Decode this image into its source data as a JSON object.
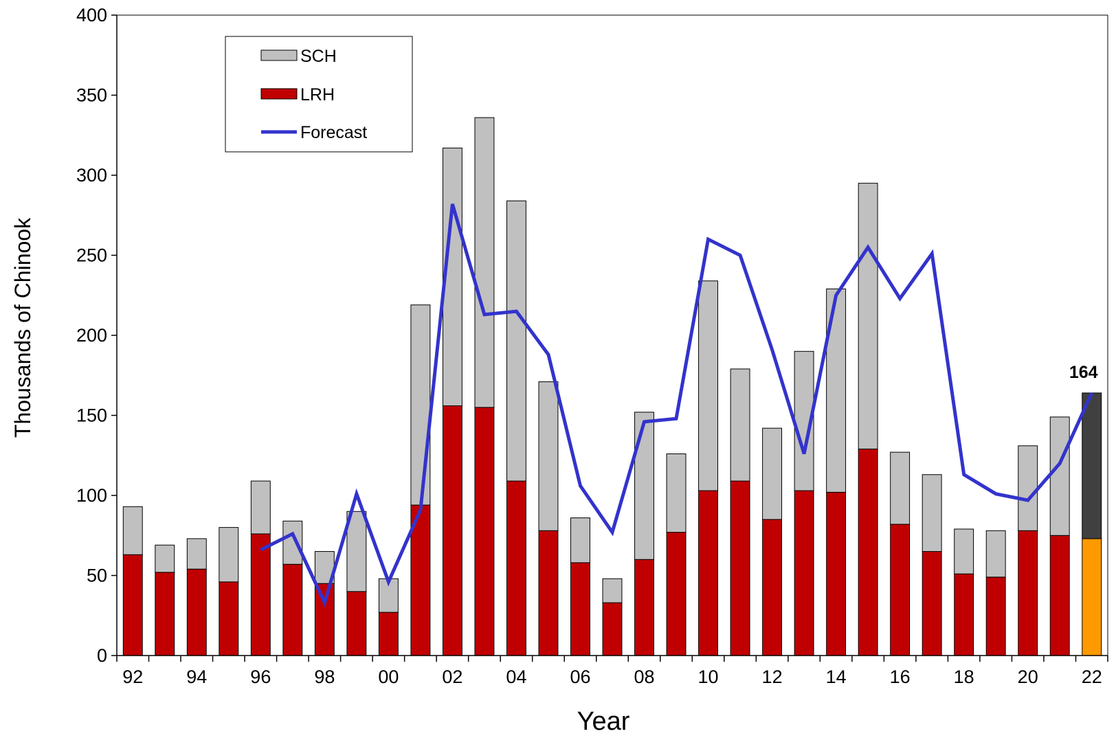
{
  "chart_data": {
    "type": "bar",
    "stacked": true,
    "x_tick_labels": [
      "92",
      "94",
      "96",
      "98",
      "00",
      "02",
      "04",
      "06",
      "08",
      "10",
      "12",
      "14",
      "16",
      "18",
      "20",
      "22"
    ],
    "x": [
      "92",
      "93",
      "94",
      "95",
      "96",
      "97",
      "98",
      "99",
      "00",
      "01",
      "02",
      "03",
      "04",
      "05",
      "06",
      "07",
      "08",
      "09",
      "10",
      "11",
      "12",
      "13",
      "14",
      "15",
      "16",
      "17",
      "18",
      "19",
      "20",
      "21",
      "22"
    ],
    "series": [
      {
        "name": "LRH",
        "kind": "bar",
        "color": "#c00000",
        "values": [
          63,
          52,
          54,
          46,
          76,
          57,
          45,
          40,
          27,
          94,
          156,
          155,
          109,
          78,
          58,
          33,
          60,
          77,
          103,
          109,
          85,
          103,
          102,
          129,
          82,
          65,
          51,
          49,
          78,
          75,
          73
        ]
      },
      {
        "name": "SCH",
        "kind": "bar",
        "color": "#c0c0c0",
        "values": [
          30,
          17,
          19,
          34,
          33,
          27,
          20,
          50,
          21,
          125,
          161,
          181,
          175,
          93,
          28,
          15,
          92,
          49,
          131,
          70,
          57,
          87,
          127,
          166,
          45,
          48,
          28,
          29,
          53,
          74,
          91
        ]
      },
      {
        "name": "Forecast",
        "kind": "line",
        "color": "#3333cc",
        "values": [
          null,
          null,
          null,
          null,
          66,
          76,
          33,
          101,
          46,
          91,
          282,
          213,
          215,
          188,
          106,
          77,
          146,
          148,
          260,
          250,
          191,
          126,
          225,
          255,
          223,
          251,
          113,
          101,
          97,
          120,
          164
        ]
      }
    ],
    "forecast_bar_colors": {
      "lower": "#ff9900",
      "upper": "#404040"
    },
    "data_labels": [
      {
        "x": "22",
        "text": "164"
      }
    ],
    "xlabel": "Year",
    "ylabel": "Thousands of Chinook",
    "ylim": [
      0,
      400
    ],
    "yticks": [
      0,
      50,
      100,
      150,
      200,
      250,
      300,
      350,
      400
    ],
    "grid": false,
    "legend": {
      "placement": "top-left",
      "entries": [
        "SCH",
        "LRH",
        "Forecast"
      ]
    }
  }
}
